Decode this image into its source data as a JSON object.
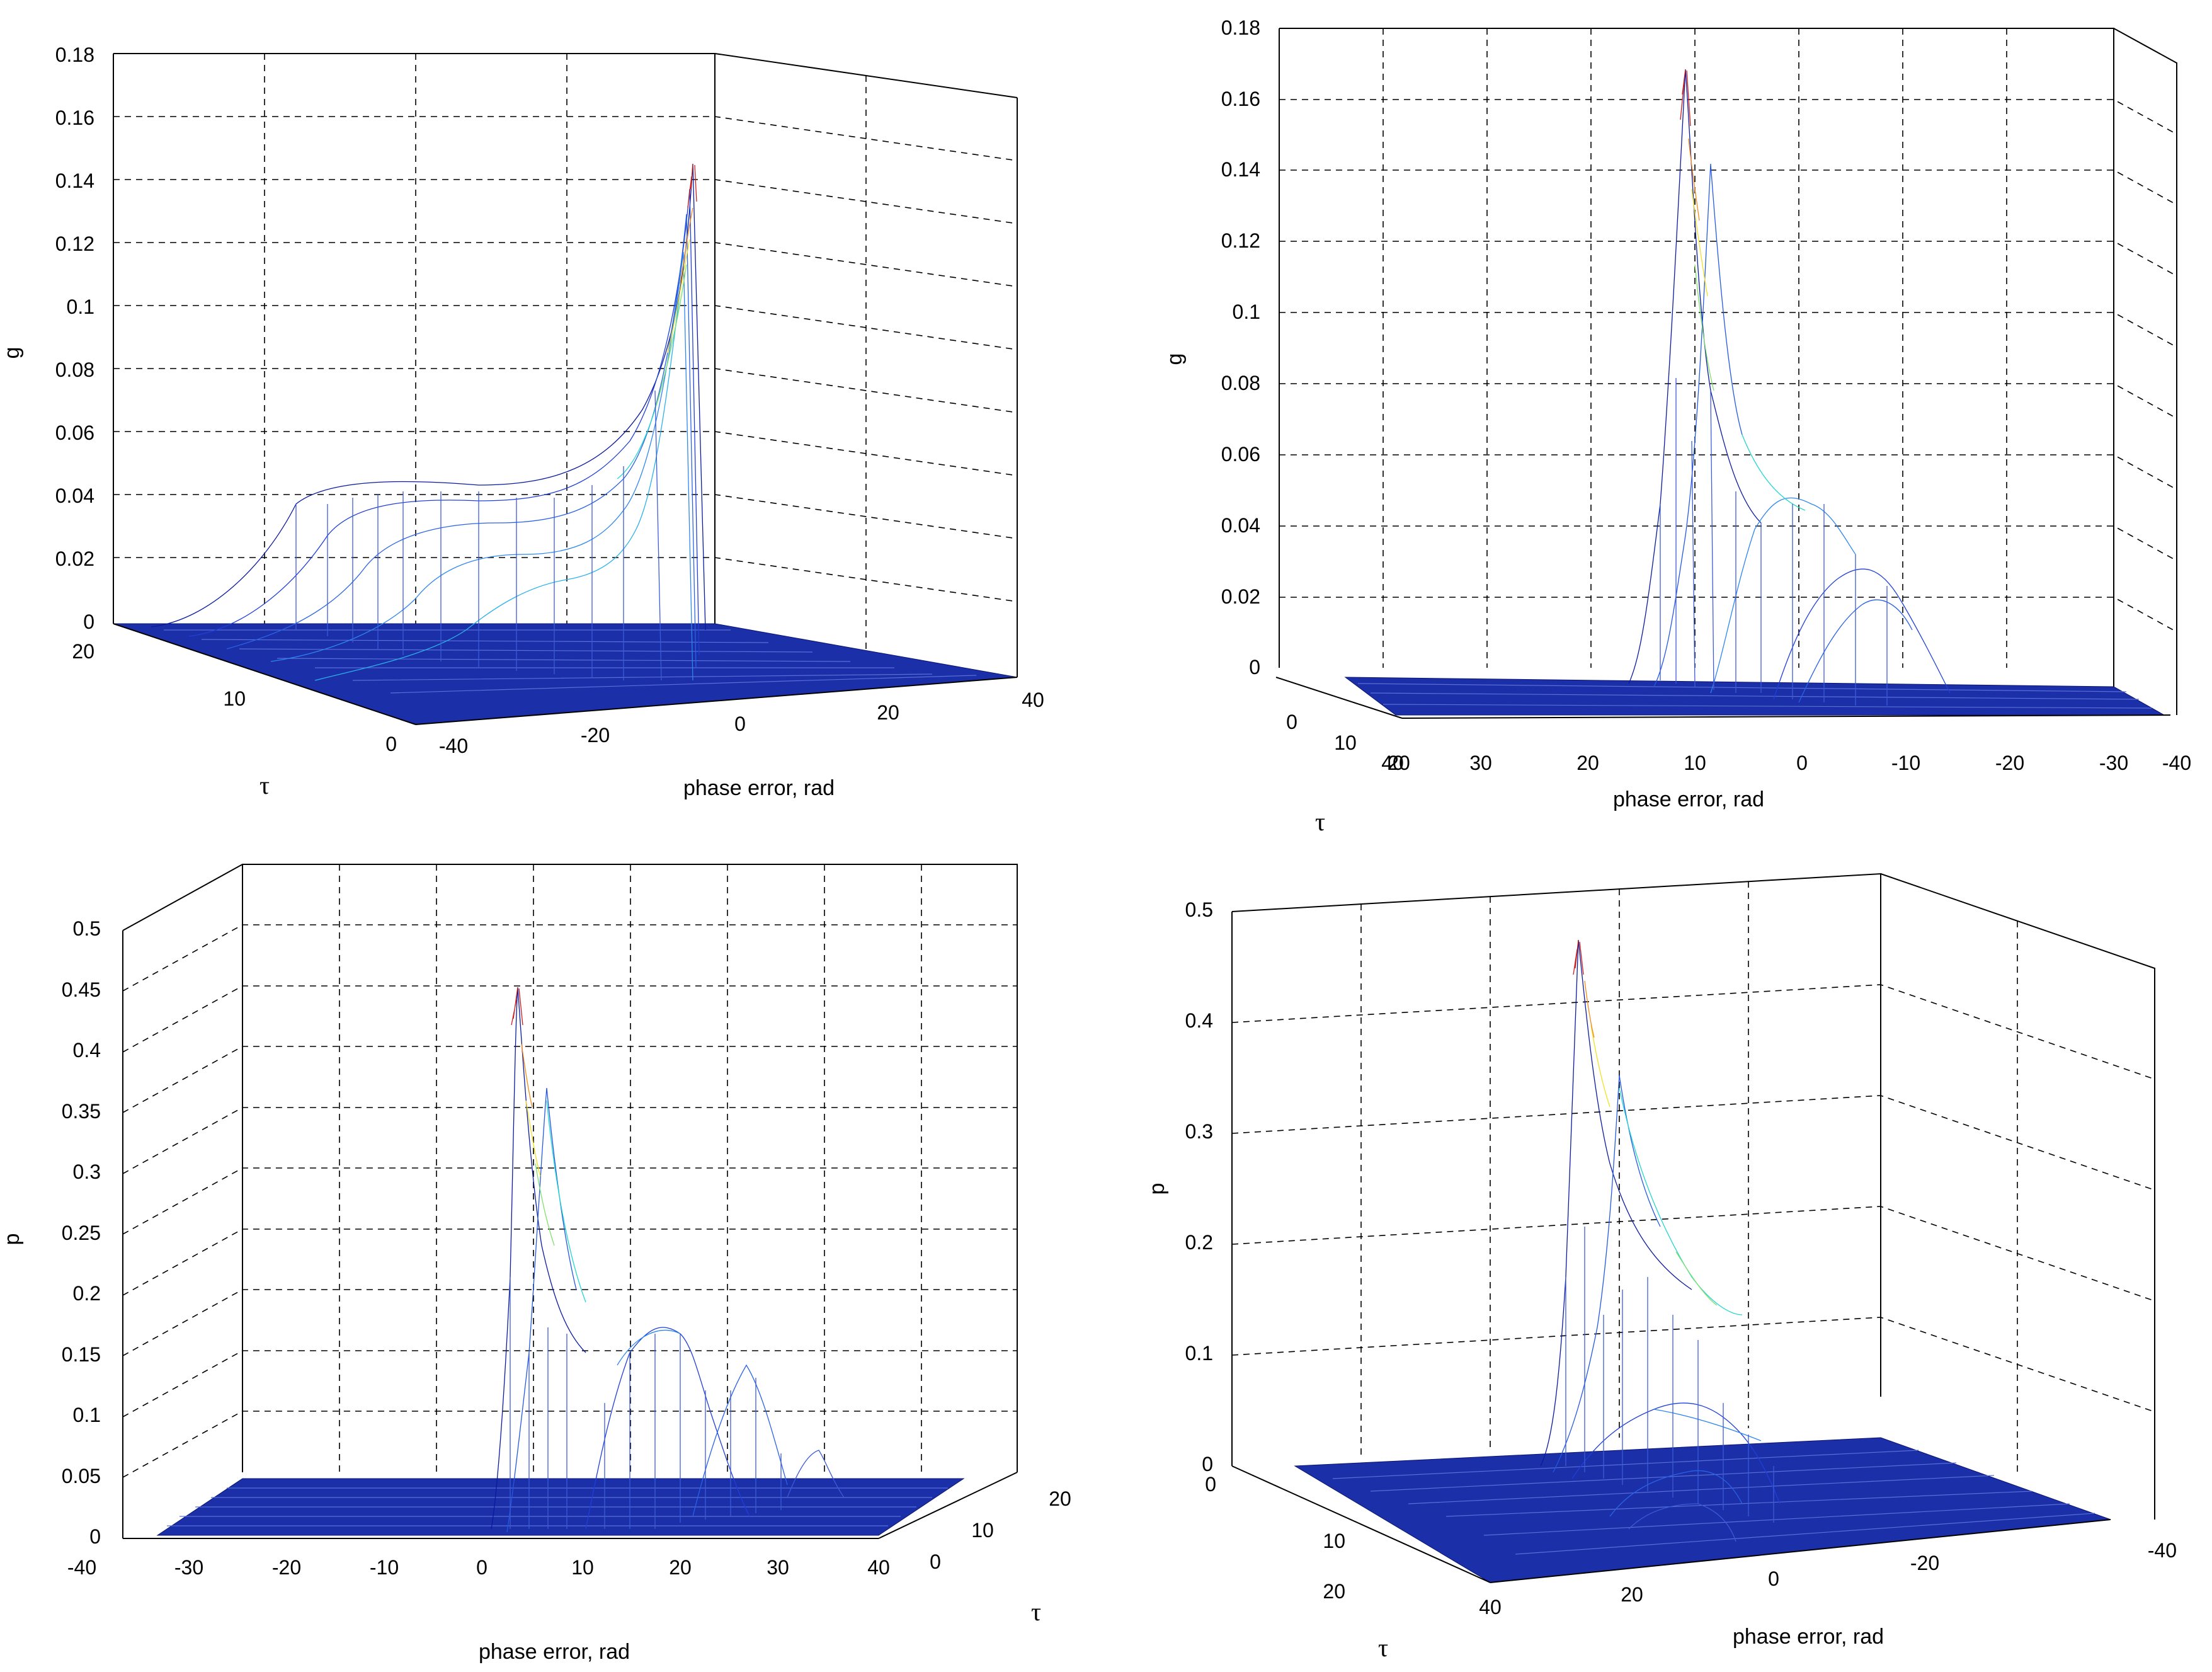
{
  "chart_data": [
    {
      "type": "surface",
      "title": "",
      "zlabel": "g",
      "xlabel": "phase error, rad",
      "ylabel": "τ",
      "zlim": [
        0,
        0.18
      ],
      "z_ticks": [
        "0",
        "0.02",
        "0.04",
        "0.06",
        "0.08",
        "0.1",
        "0.12",
        "0.14",
        "0.16",
        "0.18"
      ],
      "x_ticks": [
        "-40",
        "-20",
        "0",
        "20",
        "40"
      ],
      "y_ticks": [
        "20",
        "10",
        "0"
      ],
      "xlim": [
        -40,
        40
      ],
      "ylim": [
        0,
        20
      ],
      "peak": {
        "x": -4,
        "y": 0,
        "z": 0.145
      },
      "plateau_level": 0.04
    },
    {
      "type": "surface",
      "title": "",
      "zlabel": "g",
      "xlabel": "phase error, rad",
      "ylabel": "τ",
      "zlim": [
        0,
        0.18
      ],
      "z_ticks": [
        "0",
        "0.02",
        "0.04",
        "0.06",
        "0.08",
        "0.1",
        "0.12",
        "0.14",
        "0.16",
        "0.18"
      ],
      "x_ticks": [
        "30",
        "20",
        "10",
        "0",
        "-10",
        "-20",
        "-30",
        "-40"
      ],
      "x_tick_overlap": "40",
      "y_ticks": [
        "0",
        "10",
        "20"
      ],
      "xlim": [
        -40,
        40
      ],
      "ylim": [
        0,
        20
      ],
      "peak": {
        "x": 10,
        "y": 0,
        "z": 0.168
      }
    },
    {
      "type": "surface",
      "title": "",
      "zlabel": "p",
      "xlabel": "phase error, rad",
      "ylabel": "τ",
      "zlim": [
        0,
        0.5
      ],
      "z_ticks": [
        "0",
        "0.05",
        "0.1",
        "0.15",
        "0.2",
        "0.25",
        "0.3",
        "0.35",
        "0.4",
        "0.45",
        "0.5"
      ],
      "x_ticks": [
        "-40",
        "-30",
        "-20",
        "-10",
        "0",
        "10",
        "20",
        "30",
        "40"
      ],
      "y_ticks": [
        "0",
        "10",
        "20"
      ],
      "xlim": [
        -40,
        40
      ],
      "ylim": [
        0,
        20
      ],
      "peak": {
        "x": 2,
        "y": 0,
        "z": 0.45
      },
      "secondary_peaks": [
        {
          "x": 15,
          "z": 0.17
        },
        {
          "x": 22,
          "z": 0.15
        },
        {
          "x": 30,
          "z": 0.08
        }
      ]
    },
    {
      "type": "surface",
      "title": "",
      "zlabel": "p",
      "xlabel": "phase error, rad",
      "ylabel": "τ",
      "zlim": [
        0,
        0.5
      ],
      "z_ticks": [
        "0",
        "0.1",
        "0.2",
        "0.3",
        "0.4",
        "0.5"
      ],
      "x_ticks": [
        "40",
        "20",
        "0",
        "-20",
        "-40"
      ],
      "y_ticks": [
        "0",
        "10",
        "20"
      ],
      "xlim": [
        -40,
        40
      ],
      "ylim": [
        0,
        20
      ],
      "peak": {
        "x": 3,
        "y": 0,
        "z": 0.47
      }
    }
  ]
}
